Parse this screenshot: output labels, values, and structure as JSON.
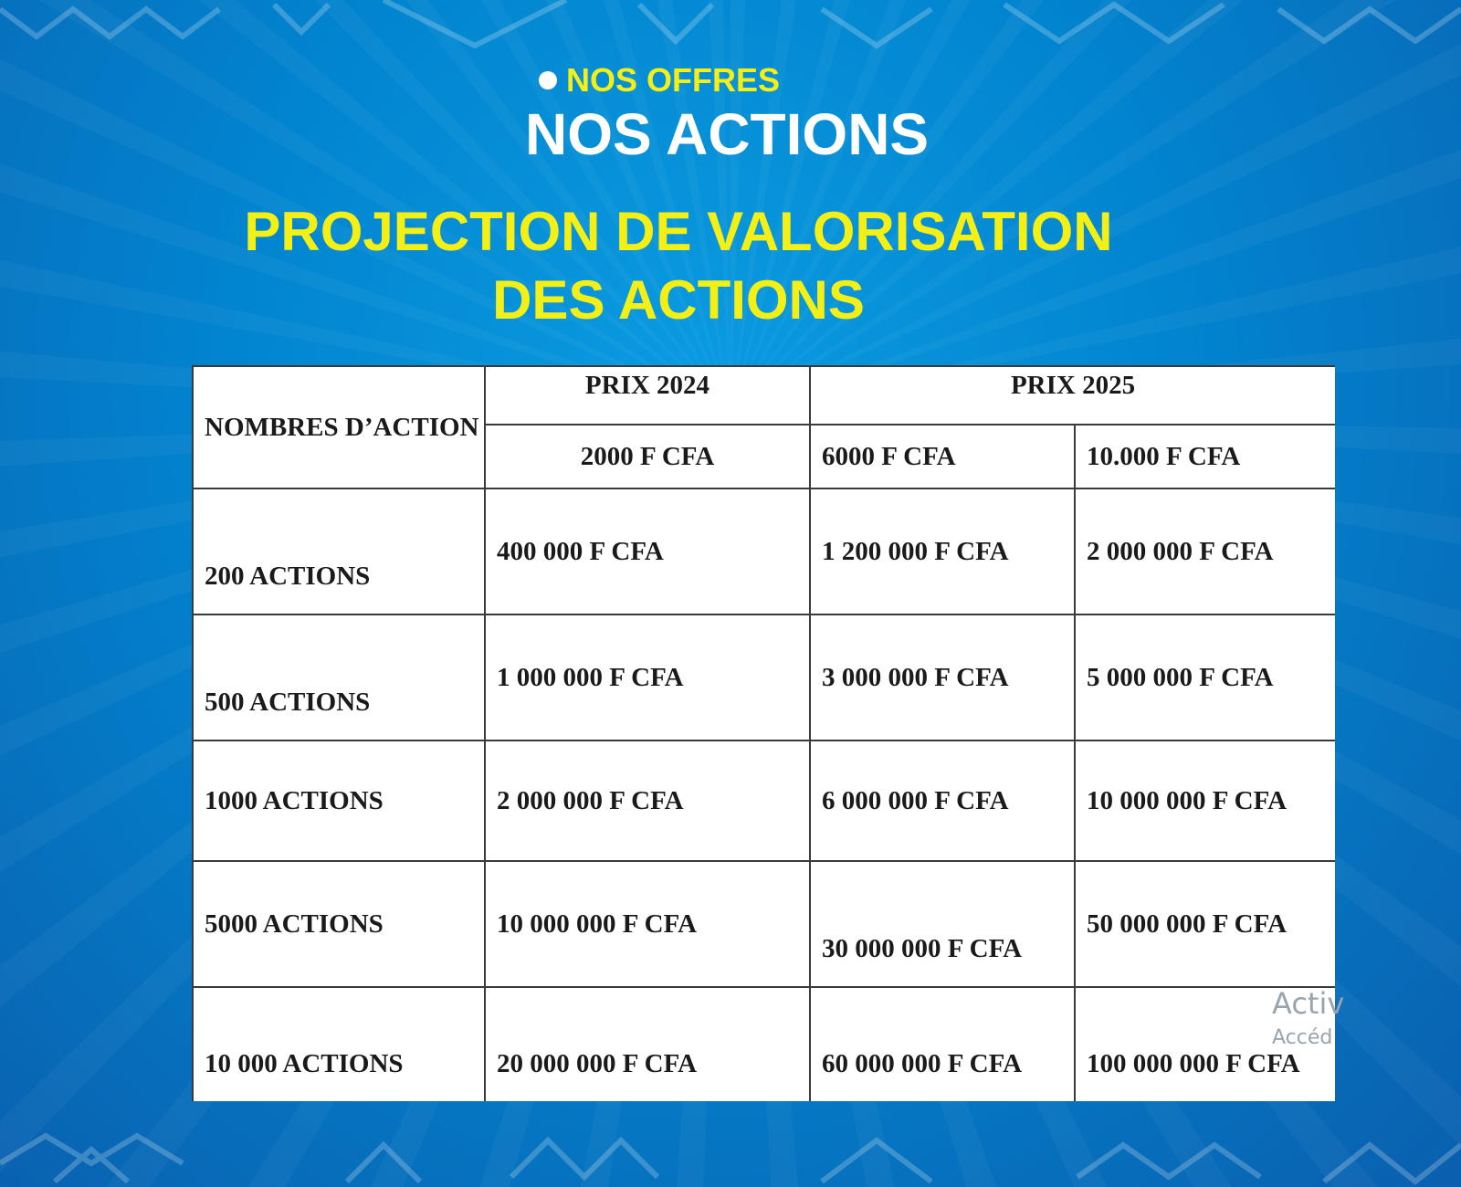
{
  "header": {
    "kicker": "NOS OFFRES",
    "title": "NOS ACTIONS",
    "subtitle_line1": "PROJECTION DE VALORISATION",
    "subtitle_line2": "DES ACTIONS"
  },
  "table": {
    "col_header": "NOMBRES D’ACTION",
    "group_2024": "PRIX 2024",
    "group_2025": "PRIX 2025",
    "price_2024": "2000 F CFA",
    "price_2025a": "6000 F CFA",
    "price_2025b": "10.000 F CFA",
    "rows": [
      {
        "label": "200 ACTIONS",
        "c1": "400 000 F CFA",
        "c2": "1 200 000 F CFA",
        "c3": "2 000 000 F CFA"
      },
      {
        "label": "500 ACTIONS",
        "c1": "1 000 000 F CFA",
        "c2": "3 000 000 F CFA",
        "c3": "5 000 000 F CFA"
      },
      {
        "label": "1000 ACTIONS",
        "c1": "2 000 000 F CFA",
        "c2": "6 000 000 F CFA",
        "c3": "10 000 000 F CFA"
      },
      {
        "label": "5000 ACTIONS",
        "c1": "10 000 000 F CFA",
        "c2": "30 000 000 F CFA",
        "c3": "50 000 000 F CFA"
      },
      {
        "label": "10 000 ACTIONS",
        "c1": "20 000 000 F CFA",
        "c2": "60 000 000 F CFA",
        "c3": "100 000 000 F CFA"
      }
    ]
  },
  "watermark": {
    "line1": "Activ",
    "line2": "Accéd"
  }
}
